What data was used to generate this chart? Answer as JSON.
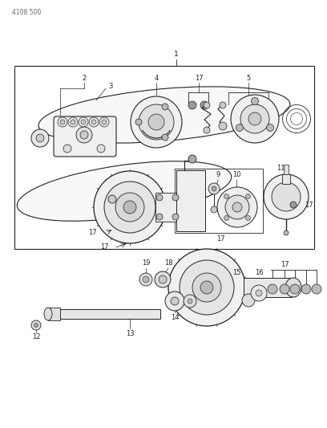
{
  "bg_color": "#ffffff",
  "line_color": "#222222",
  "header": "4108 500",
  "fig_width": 4.08,
  "fig_height": 5.33,
  "dpi": 100
}
